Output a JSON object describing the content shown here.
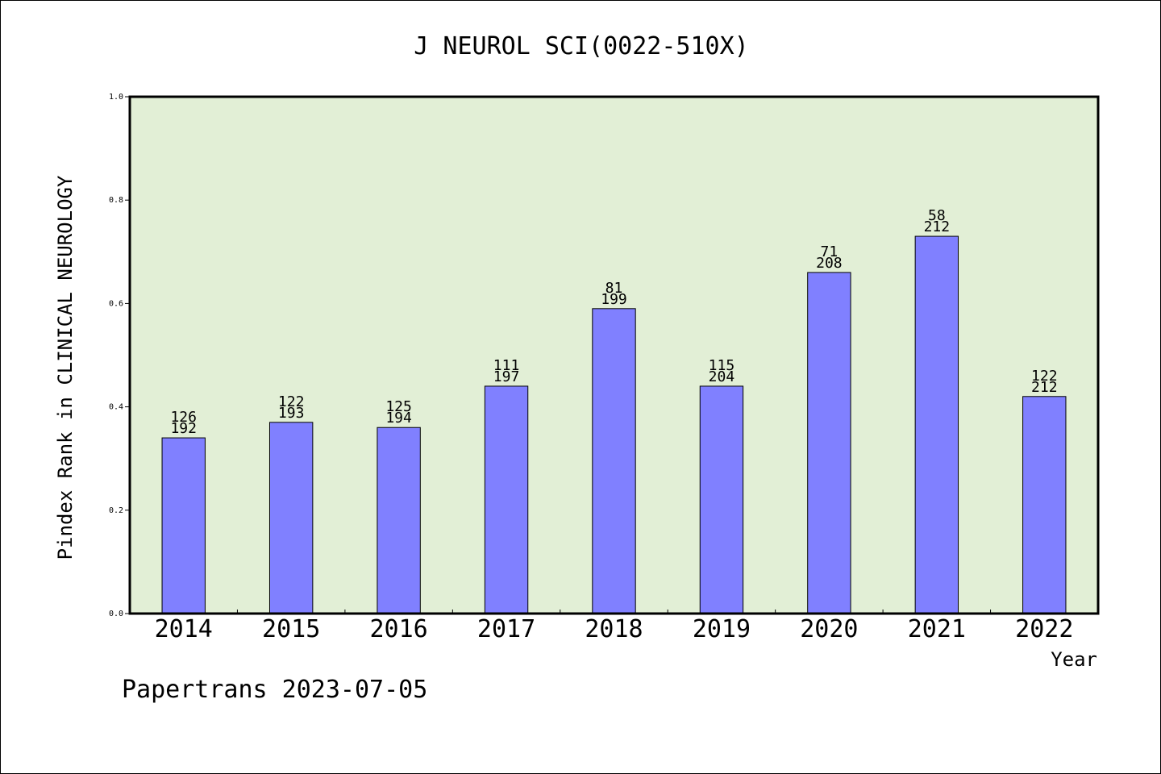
{
  "chart_data": {
    "type": "bar",
    "title": "J NEUROL SCI(0022-510X)",
    "xlabel": "Year",
    "ylabel": "Pindex Rank in CLINICAL NEUROLOGY",
    "ylim": [
      0.0,
      1.0
    ],
    "yticks": [
      "0.0",
      "0.2",
      "0.4",
      "0.6",
      "0.8",
      "1.0"
    ],
    "categories": [
      "2014",
      "2015",
      "2016",
      "2017",
      "2018",
      "2019",
      "2020",
      "2021",
      "2022"
    ],
    "values": [
      0.34,
      0.37,
      0.36,
      0.44,
      0.59,
      0.44,
      0.66,
      0.73,
      0.42
    ],
    "rank_labels": [
      "126",
      "122",
      "125",
      "111",
      "81",
      "115",
      "71",
      "58",
      "122"
    ],
    "total_labels": [
      "192",
      "193",
      "194",
      "197",
      "199",
      "204",
      "208",
      "212",
      "212"
    ],
    "grid": false,
    "colors": {
      "plot_background": "#e2efd6",
      "bar_fill": "#8080ff",
      "bar_stroke": "#000000"
    }
  },
  "footer": "Papertrans 2023-07-05"
}
